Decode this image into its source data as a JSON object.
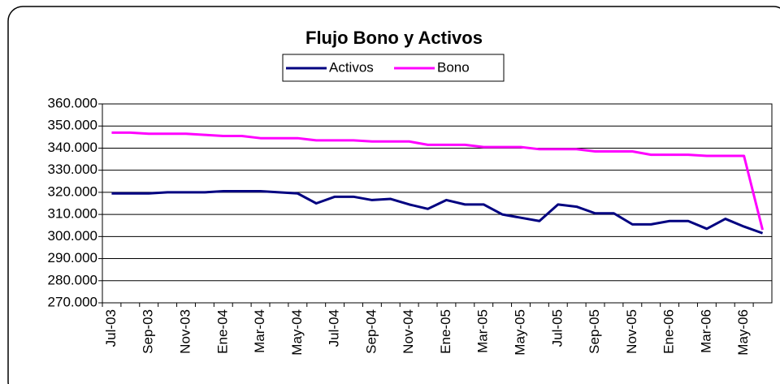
{
  "chart_data": {
    "type": "line",
    "title": "Flujo Bono y Activos",
    "categories": [
      "Jul-03",
      null,
      "Sep-03",
      null,
      "Nov-03",
      null,
      "Ene-04",
      null,
      "Mar-04",
      null,
      "May-04",
      null,
      "Jul-04",
      null,
      "Sep-04",
      null,
      "Nov-04",
      null,
      "Ene-05",
      null,
      "Mar-05",
      null,
      "May-05",
      null,
      "Jul-05",
      null,
      "Sep-05",
      null,
      "Nov-05",
      null,
      "Ene-06",
      null,
      "Mar-06",
      null,
      "May-06",
      null
    ],
    "series": [
      {
        "name": "Activos",
        "color": "#000080",
        "values": [
          319500,
          319500,
          319500,
          320000,
          320000,
          320000,
          320500,
          320500,
          320500,
          320000,
          319500,
          315000,
          318000,
          318000,
          316500,
          317000,
          314500,
          312500,
          316500,
          314500,
          314500,
          310000,
          308500,
          307000,
          314500,
          313500,
          310500,
          310500,
          305500,
          305500,
          307000,
          307000,
          303500,
          308000,
          304500,
          301500
        ]
      },
      {
        "name": "Bono",
        "color": "#ff00ff",
        "values": [
          347000,
          347000,
          346500,
          346500,
          346500,
          346000,
          345500,
          345500,
          344500,
          344500,
          344500,
          343500,
          343500,
          343500,
          343000,
          343000,
          343000,
          341500,
          341500,
          341500,
          340500,
          340500,
          340500,
          339500,
          339500,
          339500,
          338500,
          338500,
          338500,
          337000,
          337000,
          337000,
          336500,
          336500,
          336500,
          303000
        ]
      }
    ],
    "ylim": [
      270000,
      360000
    ],
    "yticks": [
      {
        "value": 270000,
        "label": "270.000"
      },
      {
        "value": 280000,
        "label": "280.000"
      },
      {
        "value": 290000,
        "label": "290.000"
      },
      {
        "value": 300000,
        "label": "300.000"
      },
      {
        "value": 310000,
        "label": "310.000"
      },
      {
        "value": 320000,
        "label": "320.000"
      },
      {
        "value": 330000,
        "label": "330.000"
      },
      {
        "value": 340000,
        "label": "340.000"
      },
      {
        "value": 350000,
        "label": "350.000"
      },
      {
        "value": 360000,
        "label": "360.000"
      }
    ],
    "grid": true,
    "legend": "top"
  }
}
